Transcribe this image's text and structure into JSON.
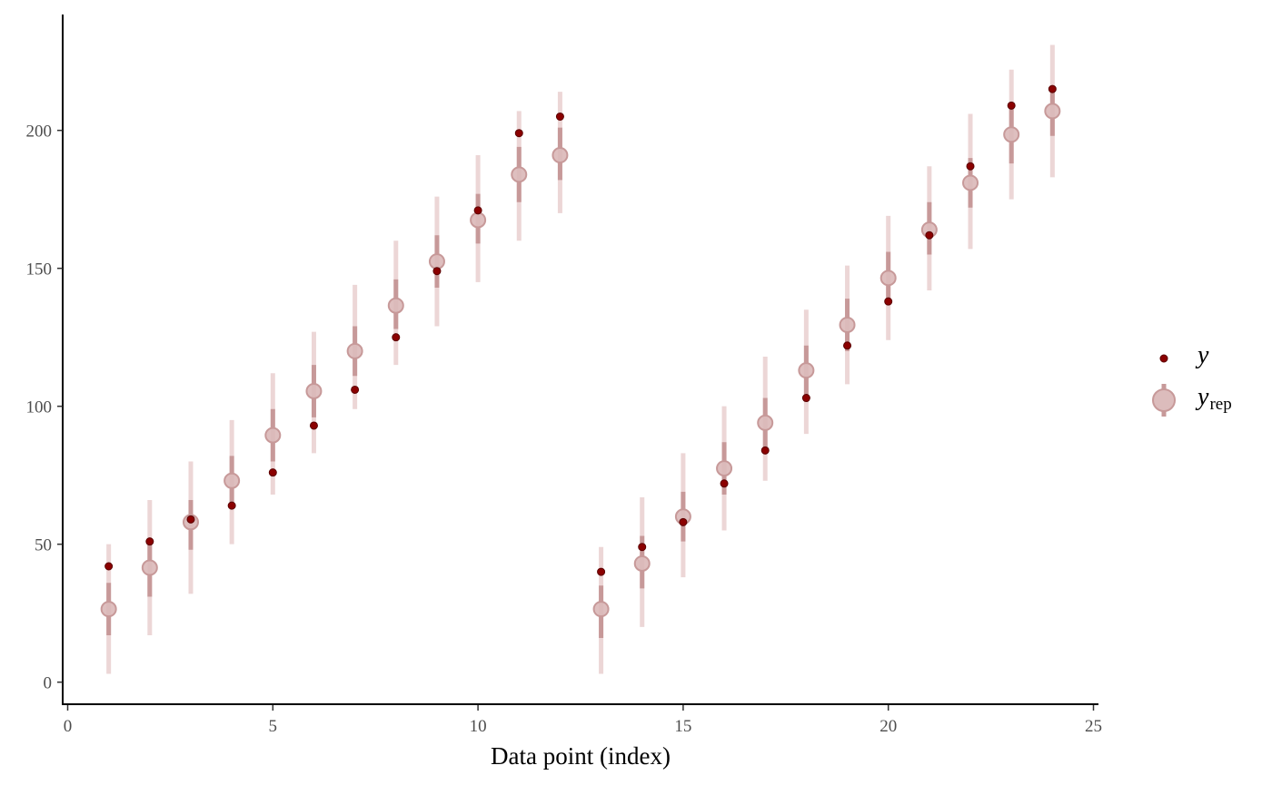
{
  "chart_data": {
    "type": "scatter",
    "title": "",
    "xlabel": "Data point (index)",
    "ylabel": "",
    "xlim": [
      0,
      25
    ],
    "ylim": [
      -8,
      242
    ],
    "xticks": [
      0,
      5,
      10,
      15,
      20,
      25
    ],
    "yticks": [
      0,
      50,
      100,
      150,
      200
    ],
    "grid": false,
    "legend_position": "right",
    "colors": {
      "y_point": "#8b0000",
      "yrep_point": "#dcbcbc",
      "yrep_point_border": "#c79999",
      "inner_interval": "#c79999",
      "outer_interval": "#ecd6d6"
    },
    "legend": [
      {
        "key": "y",
        "label": "y",
        "sub": ""
      },
      {
        "key": "yrep",
        "label": "y",
        "sub": "rep"
      }
    ],
    "series": [
      {
        "name": "y",
        "x": [
          1,
          2,
          3,
          4,
          5,
          6,
          7,
          8,
          9,
          10,
          11,
          12,
          13,
          14,
          15,
          16,
          17,
          18,
          19,
          20,
          21,
          22,
          23,
          24
        ],
        "values": [
          42,
          51,
          59,
          64,
          76,
          93,
          106,
          125,
          149,
          171,
          199,
          205,
          40,
          49,
          58,
          72,
          84,
          103,
          122,
          138,
          162,
          187,
          209,
          215
        ]
      },
      {
        "name": "yrep",
        "x": [
          1,
          2,
          3,
          4,
          5,
          6,
          7,
          8,
          9,
          10,
          11,
          12,
          13,
          14,
          15,
          16,
          17,
          18,
          19,
          20,
          21,
          22,
          23,
          24
        ],
        "values": [
          26.5,
          41.5,
          58,
          73,
          89.5,
          105.5,
          120,
          136.5,
          152.5,
          167.5,
          184,
          191,
          26.5,
          43,
          60,
          77.5,
          94,
          113,
          129.5,
          146.5,
          164,
          181,
          198.5,
          207
        ],
        "inner_low": [
          17,
          31,
          48,
          64,
          80,
          96,
          111,
          128,
          143,
          159,
          174,
          182,
          16,
          34,
          51,
          68,
          84,
          104,
          120,
          137,
          155,
          172,
          188,
          198
        ],
        "inner_high": [
          36,
          50,
          66,
          82,
          99,
          115,
          129,
          146,
          162,
          177,
          194,
          201,
          35,
          53,
          69,
          87,
          103,
          122,
          139,
          156,
          174,
          190,
          209,
          216
        ],
        "outer_low": [
          3,
          17,
          32,
          50,
          68,
          83,
          99,
          115,
          129,
          145,
          160,
          170,
          3,
          20,
          38,
          55,
          73,
          90,
          108,
          124,
          142,
          157,
          175,
          183
        ],
        "outer_high": [
          50,
          66,
          80,
          95,
          112,
          127,
          144,
          160,
          176,
          191,
          207,
          214,
          49,
          67,
          83,
          100,
          118,
          135,
          151,
          169,
          187,
          206,
          222,
          231
        ]
      }
    ]
  }
}
